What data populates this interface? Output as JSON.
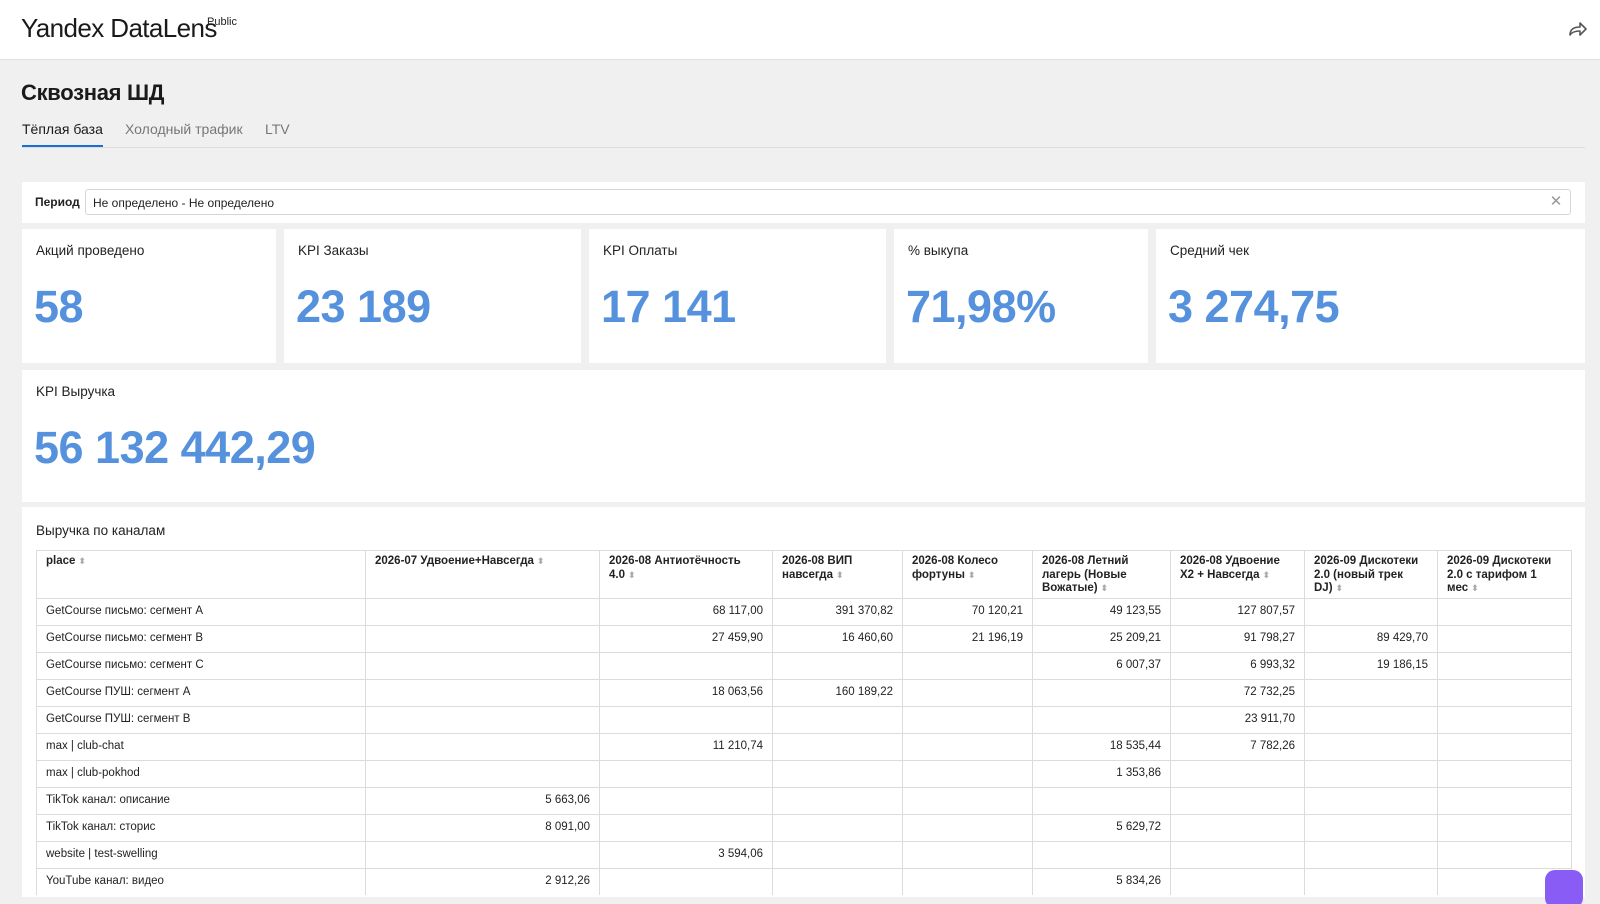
{
  "header": {
    "logo": "Yandex DataLens",
    "badge": "Public",
    "share_icon": "share-icon"
  },
  "page": {
    "title": "Сквозная ШД"
  },
  "tabs": [
    {
      "label": "Тёплая база",
      "active": true
    },
    {
      "label": "Холодный трафик",
      "active": false
    },
    {
      "label": "LTV",
      "active": false
    }
  ],
  "filter": {
    "label": "Период",
    "value": "Не определено - Не определено",
    "clear_icon": "close-icon"
  },
  "kpis": [
    {
      "title": "Акций проведено",
      "value": "58"
    },
    {
      "title": "KPI Заказы",
      "value": "23 189"
    },
    {
      "title": "KPI Оплаты",
      "value": "17 141"
    },
    {
      "title": "% выкупа",
      "value": "71,98%"
    },
    {
      "title": "Средний чек",
      "value": "3 274,75"
    },
    {
      "title": "KPI Выручка",
      "value": "56 132 442,29"
    }
  ],
  "table": {
    "title": "Выручка по каналам",
    "columns": [
      "place",
      "2026-07 Удвоение+Навсегда",
      "2026-08 Антиотёчность 4.0",
      "2026-08 ВИП навсегда",
      "2026-08 Колесо фортуны",
      "2026-08 Летний лагерь (Новые Вожатые)",
      "2026-08 Удвоение X2 + Навсегда",
      "2026-09 Дискотеки 2.0 (новый трек DJ)",
      "2026-09 Дискотеки 2.0 с тарифом 1 мес"
    ],
    "rows": [
      [
        "GetCourse письмо: сегмент A",
        "",
        "68 117,00",
        "391 370,82",
        "70 120,21",
        "49 123,55",
        "127 807,57",
        "",
        ""
      ],
      [
        "GetCourse письмо: сегмент B",
        "",
        "27 459,90",
        "16 460,60",
        "21 196,19",
        "25 209,21",
        "91 798,27",
        "89 429,70",
        ""
      ],
      [
        "GetCourse письмо: сегмент C",
        "",
        "",
        "",
        "",
        "6 007,37",
        "6 993,32",
        "19 186,15",
        ""
      ],
      [
        "GetCourse ПУШ: сегмент A",
        "",
        "18 063,56",
        "160 189,22",
        "",
        "",
        "72 732,25",
        "",
        ""
      ],
      [
        "GetCourse ПУШ: сегмент B",
        "",
        "",
        "",
        "",
        "",
        "23 911,70",
        "",
        ""
      ],
      [
        "max | club-chat",
        "",
        "11 210,74",
        "",
        "",
        "18 535,44",
        "7 782,26",
        "",
        ""
      ],
      [
        "max | club-pokhod",
        "",
        "",
        "",
        "",
        "1 353,86",
        "",
        "",
        ""
      ],
      [
        "TikTok канал: описание",
        "5 663,06",
        "",
        "",
        "",
        "",
        "",
        "",
        ""
      ],
      [
        "TikTok канал: сторис",
        "8 091,00",
        "",
        "",
        "",
        "5 629,72",
        "",
        "",
        ""
      ],
      [
        "website | test-swelling",
        "",
        "3 594,06",
        "",
        "",
        "",
        "",
        "",
        ""
      ],
      [
        "YouTube канал: видео",
        "2 912,26",
        "",
        "",
        "",
        "5 834,26",
        "",
        "",
        ""
      ]
    ]
  }
}
